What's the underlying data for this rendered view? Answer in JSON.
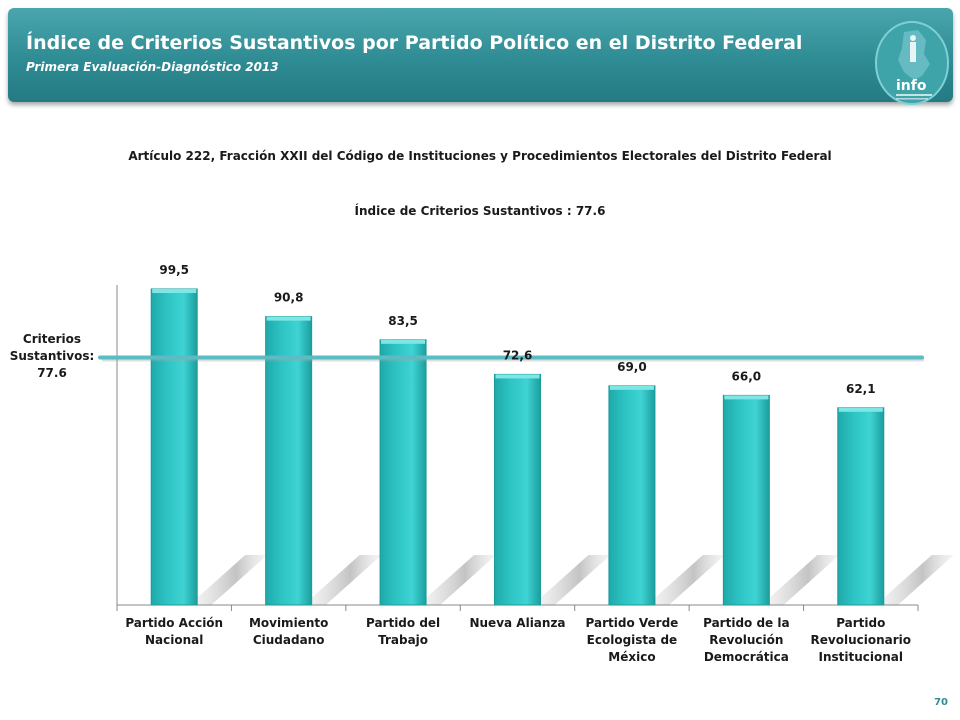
{
  "header": {
    "title": "Índice de Criterios Sustantivos por Partido Político en el Distrito Federal",
    "subtitle": "Primera Evaluación-Diagnóstico 2013",
    "logo_text": "info"
  },
  "heading": "Artículo 222, Fracción XXII del Código de Instituciones y Procedimientos Electorales del Distrito Federal",
  "reference": {
    "label_lines": [
      "Criterios",
      "Sustantivos:",
      "77.6"
    ]
  },
  "page_number": "70",
  "colors": {
    "banner": "#2f8c94",
    "bar": "#2ec4c4",
    "reference_line": "#5bbcc4"
  },
  "chart_data": {
    "type": "bar",
    "title": "Índice de Criterios Sustantivos : 77.6",
    "categories": [
      [
        "Partido Acción",
        "Nacional"
      ],
      [
        "Movimiento",
        "Ciudadano"
      ],
      [
        "Partido del",
        "Trabajo"
      ],
      [
        "Nueva Alianza"
      ],
      [
        "Partido Verde",
        "Ecologista de",
        "México"
      ],
      [
        "Partido de la",
        "Revolución",
        "Democrática"
      ],
      [
        "Partido",
        "Revolucionario",
        "Institucional"
      ]
    ],
    "values": [
      99.5,
      90.8,
      83.5,
      72.6,
      69.0,
      66.0,
      62.1
    ],
    "value_labels": [
      "99,5",
      "90,8",
      "83,5",
      "72,6",
      "69,0",
      "66,0",
      "62,1"
    ],
    "reference_value": 77.6,
    "ylim": [
      0,
      100
    ],
    "grid": false,
    "legend": "none"
  }
}
